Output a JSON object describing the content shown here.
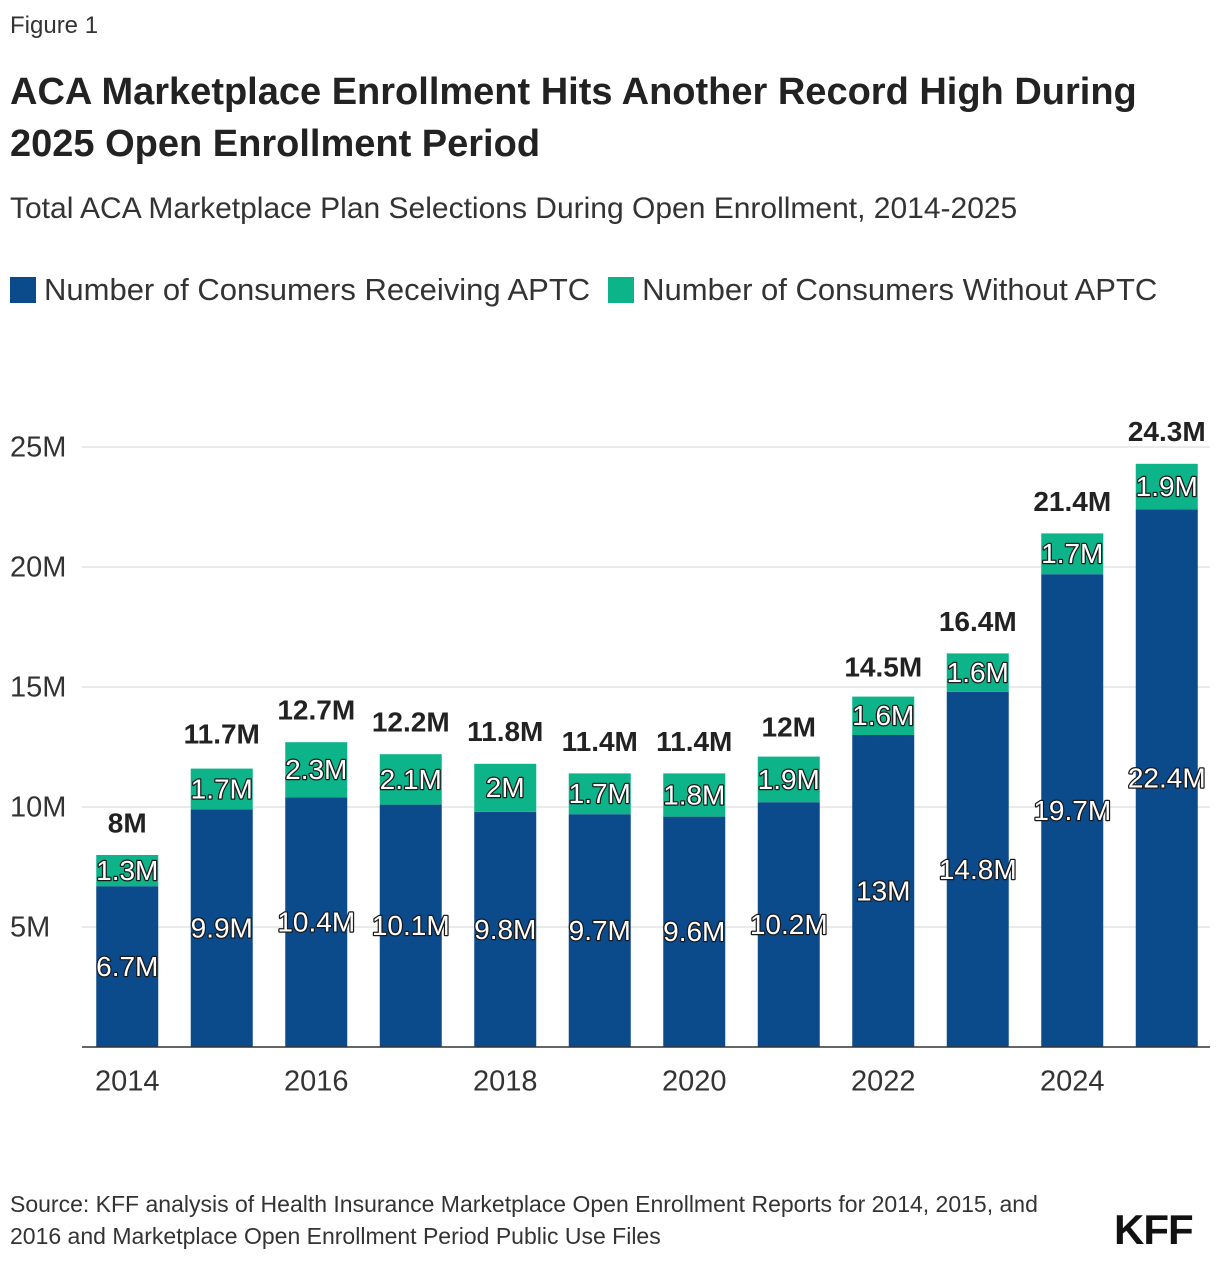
{
  "figure_label": "Figure 1",
  "chart_data": {
    "type": "stacked_bar",
    "title": "ACA Marketplace Enrollment Hits Another Record High During 2025 Open Enrollment Period",
    "subtitle": "Total ACA Marketplace Plan Selections During Open Enrollment, 2014-2025",
    "categories": [
      "2014",
      null,
      "2016",
      null,
      "2018",
      null,
      "2020",
      null,
      "2022",
      null,
      "2024",
      null
    ],
    "series": [
      {
        "name": "Number of Consumers Receiving APTC",
        "color": "#0b4a8b",
        "values": [
          6700000,
          9900000,
          10400000,
          10100000,
          9800000,
          9700000,
          9600000,
          10200000,
          13000000,
          14800000,
          19700000,
          22400000
        ],
        "value_labels": [
          "6.7M",
          "9.9M",
          "10.4M",
          "10.1M",
          "9.8M",
          "9.7M",
          "9.6M",
          "10.2M",
          "13M",
          "14.8M",
          "19.7M",
          "22.4M"
        ]
      },
      {
        "name": "Number of Consumers Without APTC",
        "color": "#0db48a",
        "values": [
          1300000,
          1700000,
          2300000,
          2100000,
          2000000,
          1700000,
          1800000,
          1900000,
          1600000,
          1600000,
          1700000,
          1900000
        ],
        "value_labels": [
          "1.3M",
          "1.7M",
          "2.3M",
          "2.1M",
          "2M",
          "1.7M",
          "1.8M",
          "1.9M",
          "1.6M",
          "1.6M",
          "1.7M",
          "1.9M"
        ]
      }
    ],
    "totals": [
      8000000,
      11700000,
      12700000,
      12200000,
      11800000,
      11400000,
      11400000,
      12000000,
      14500000,
      16400000,
      21400000,
      24300000
    ],
    "total_labels": [
      "8M",
      "11.7M",
      "12.7M",
      "12.2M",
      "11.8M",
      "11.4M",
      "11.4M",
      "12M",
      "14.5M",
      "16.4M",
      "21.4M",
      "24.3M"
    ],
    "ylim": [
      0,
      25000000
    ],
    "yticks": [
      {
        "value": 5000000,
        "label": "5M"
      },
      {
        "value": 10000000,
        "label": "10M"
      },
      {
        "value": 15000000,
        "label": "15M"
      },
      {
        "value": 20000000,
        "label": "20M"
      },
      {
        "value": 25000000,
        "label": "25M"
      }
    ],
    "grid": true,
    "source": "Source: KFF analysis of Health Insurance Marketplace Open Enrollment Reports for 2014, 2015, and 2016 and Marketplace Open Enrollment Period Public Use Files"
  },
  "logo": "KFF"
}
